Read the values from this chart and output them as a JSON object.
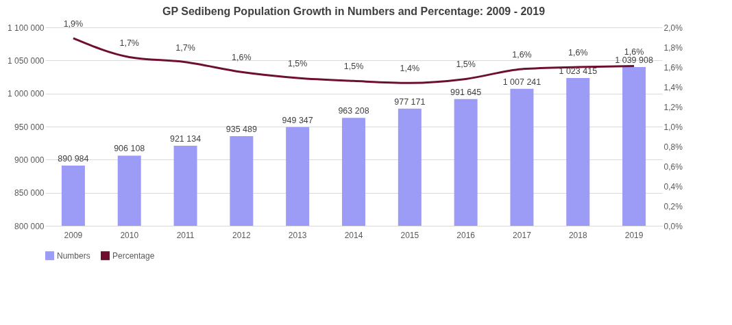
{
  "chart_data": {
    "type": "bar",
    "title": "GP Sedibeng Population Growth in  Numbers and Percentage: 2009 - 2019",
    "categories": [
      "2009",
      "2010",
      "2011",
      "2012",
      "2013",
      "2014",
      "2015",
      "2016",
      "2017",
      "2018",
      "2019"
    ],
    "series": [
      {
        "name": "Numbers",
        "color": "#9c9cf7",
        "values": [
          890984,
          906108,
          921134,
          935489,
          949347,
          963208,
          977171,
          991645,
          1007241,
          1023415,
          1039908
        ],
        "value_labels": [
          "890 984",
          "906 108",
          "921 134",
          "935 489",
          "949 347",
          "963 208",
          "977 171",
          "991 645",
          "1 007 241",
          "1 023 415",
          "1 039 908"
        ]
      },
      {
        "name": "Percentage",
        "type": "line",
        "axis": "y2",
        "color": "#6e0f2f",
        "values": [
          1.89,
          1.7,
          1.65,
          1.55,
          1.49,
          1.46,
          1.44,
          1.48,
          1.58,
          1.6,
          1.61
        ],
        "value_labels": [
          "1,9%",
          "1,7%",
          "1,7%",
          "1,6%",
          "1,5%",
          "1,5%",
          "1,4%",
          "1,5%",
          "1,6%",
          "1,6%",
          "1,6%"
        ]
      }
    ],
    "ylim": [
      800000,
      1100000
    ],
    "yticks": [
      {
        "value": 800000,
        "label": "800 000"
      },
      {
        "value": 850000,
        "label": "850 000"
      },
      {
        "value": 900000,
        "label": "900 000"
      },
      {
        "value": 950000,
        "label": "950 000"
      },
      {
        "value": 1000000,
        "label": "1 000 000"
      },
      {
        "value": 1050000,
        "label": "1 050 000"
      },
      {
        "value": 1100000,
        "label": "1 100 000"
      }
    ],
    "y2lim": [
      0,
      2.0
    ],
    "y2ticks": [
      {
        "value": 0,
        "label": "0,0%"
      },
      {
        "value": 0.2,
        "label": "0,2%"
      },
      {
        "value": 0.4,
        "label": "0,4%"
      },
      {
        "value": 0.6,
        "label": "0,6%"
      },
      {
        "value": 0.8,
        "label": "0,8%"
      },
      {
        "value": 1.0,
        "label": "1,0%"
      },
      {
        "value": 1.2,
        "label": "1,2%"
      },
      {
        "value": 1.4,
        "label": "1,4%"
      },
      {
        "value": 1.6,
        "label": "1,6%"
      },
      {
        "value": 1.8,
        "label": "1,8%"
      },
      {
        "value": 2.0,
        "label": "2,0%"
      }
    ],
    "grid": "y",
    "legend": "bottom",
    "marker": "none",
    "line_style": "solid"
  }
}
